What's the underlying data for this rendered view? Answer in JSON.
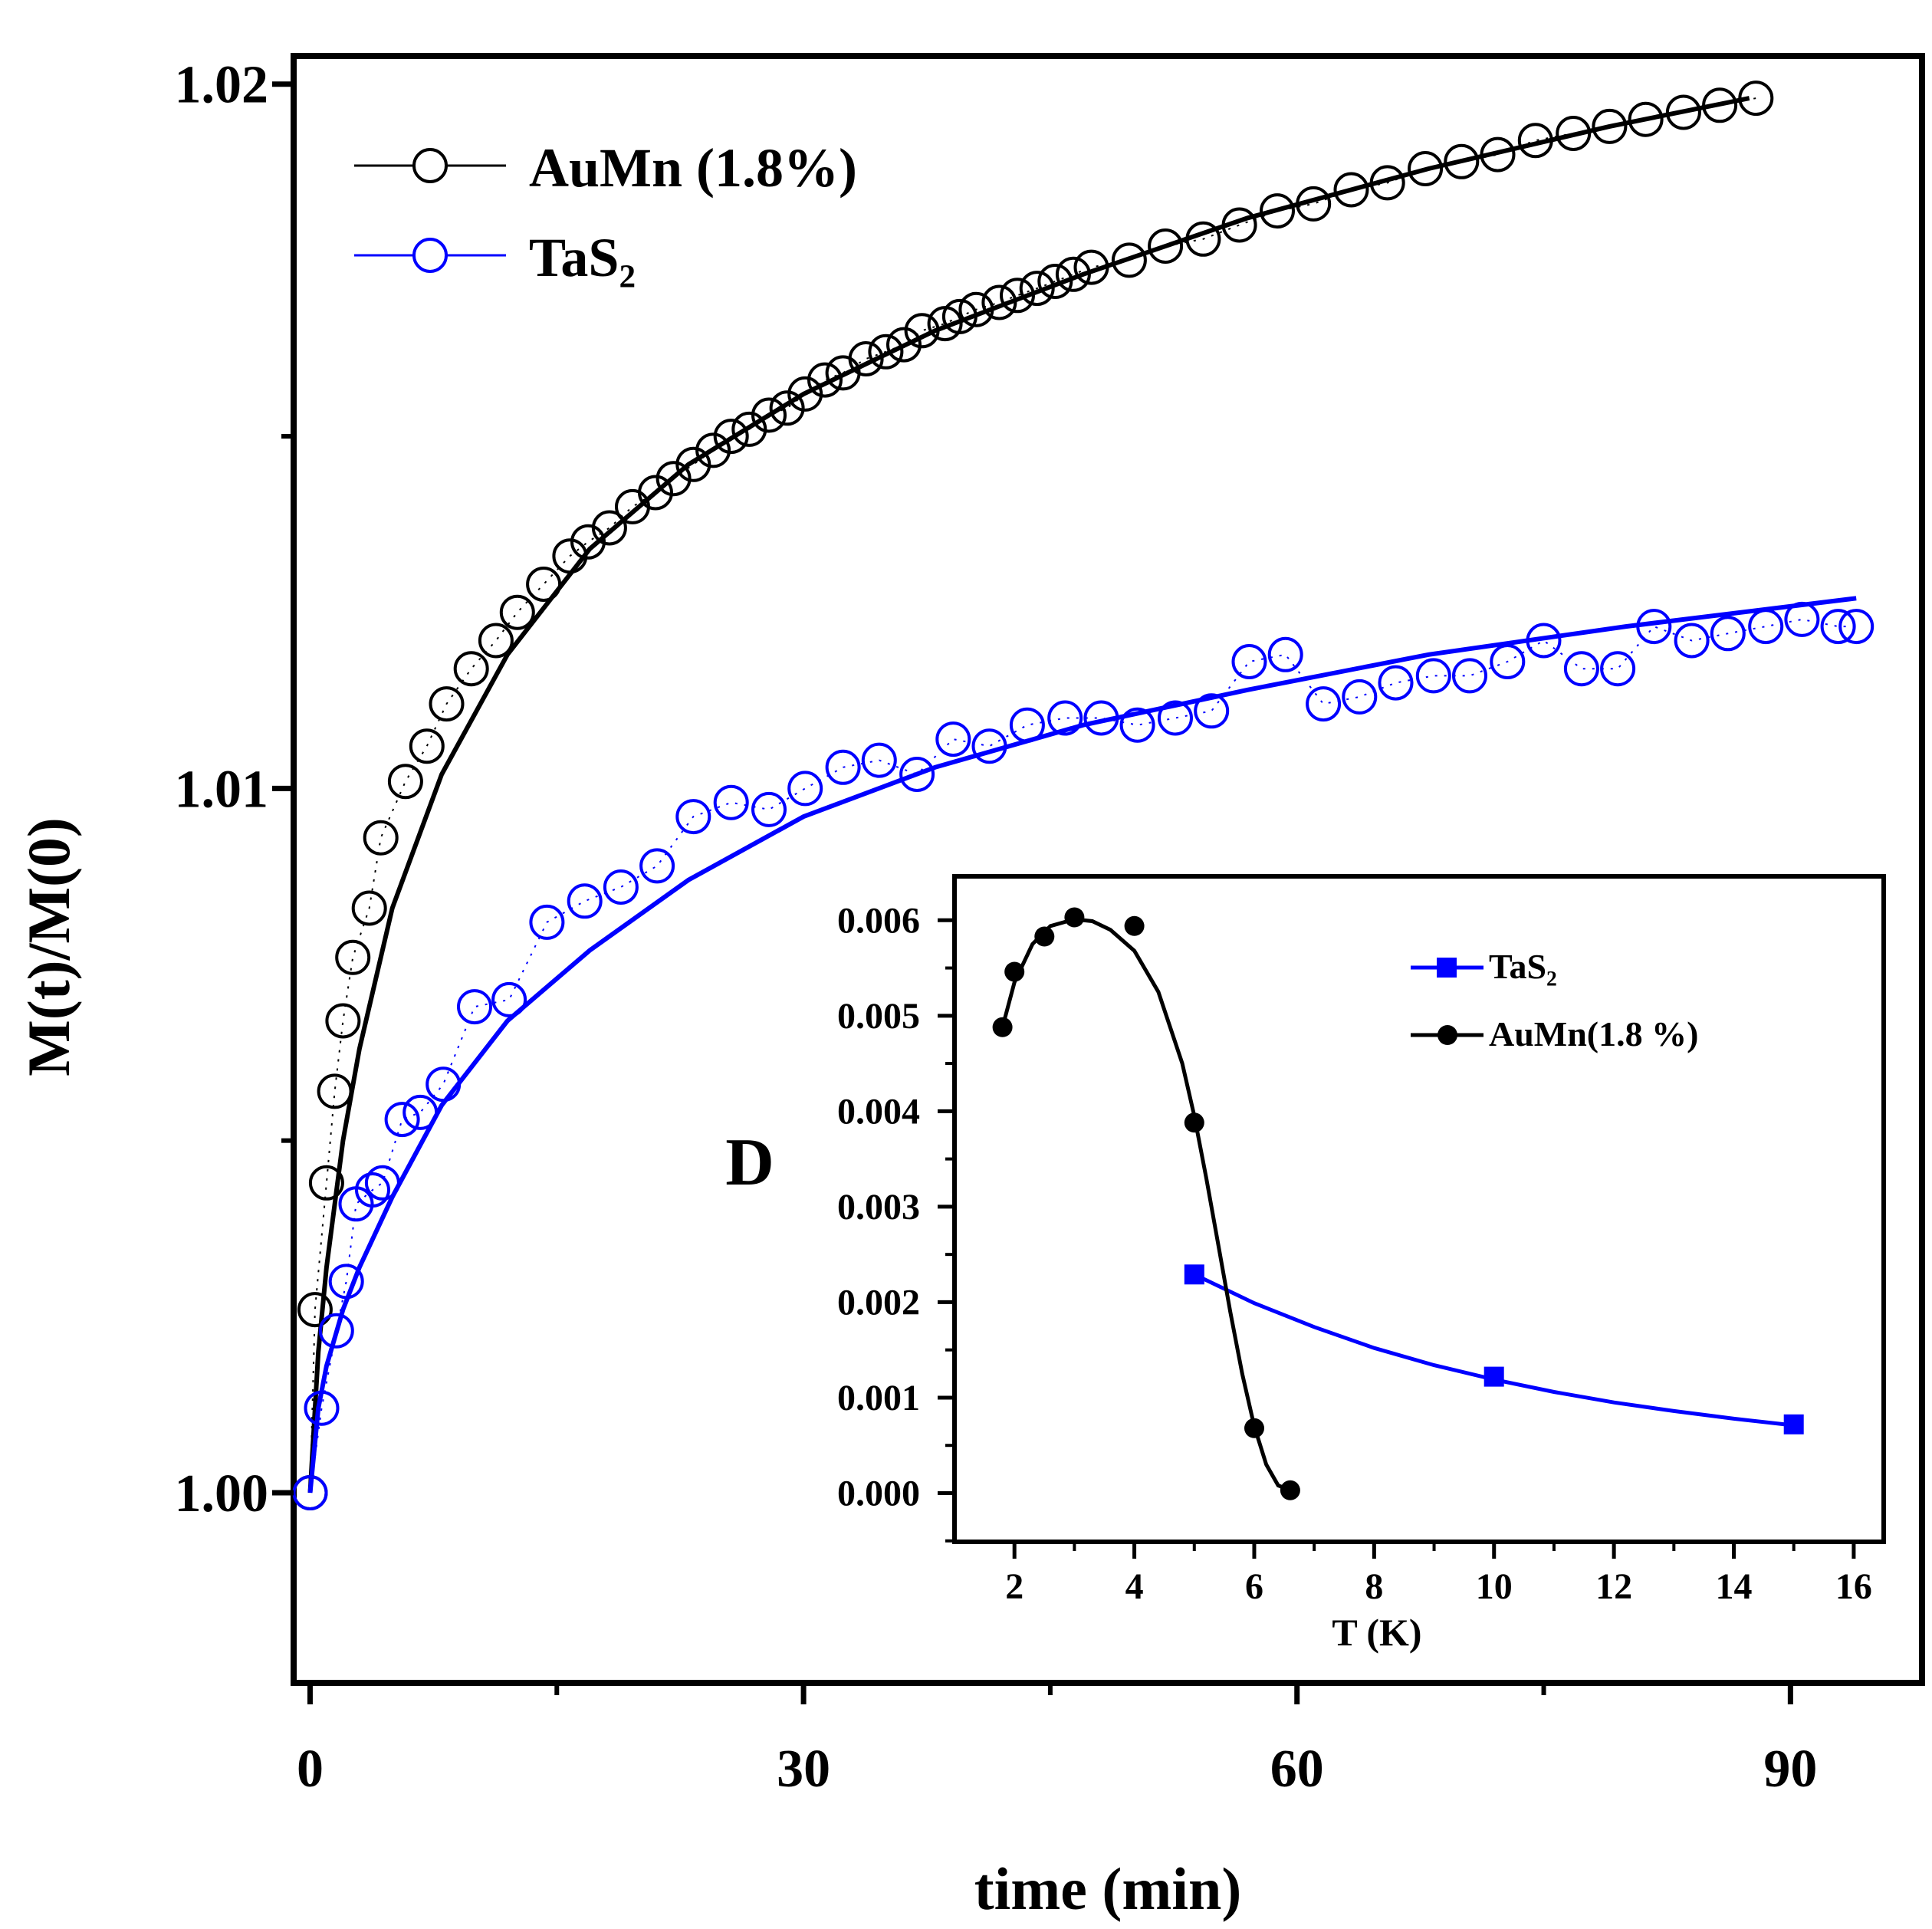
{
  "chart_data": [
    {
      "type": "scatter",
      "title": "",
      "xlabel": "time (min)",
      "ylabel": "M(t)/M(0)",
      "xlim": [
        -1,
        98
      ],
      "ylim": [
        0.9973,
        1.0204
      ],
      "xticks": [
        0,
        30,
        60,
        90
      ],
      "xtick_labels": [
        "0",
        "30",
        "60",
        "90"
      ],
      "yticks": [
        1.0,
        1.01,
        1.02
      ],
      "ytick_labels": [
        "1.00",
        "1.01",
        "1.02"
      ],
      "grid": false,
      "legend_position": "top-left",
      "series": [
        {
          "name": "AuMn (1.8%)",
          "color": "#000000",
          "marker": "open-circle",
          "x": [
            0,
            0.3,
            1.0,
            1.5,
            2.0,
            2.6,
            3.6,
            4.3,
            5.8,
            7.1,
            8.3,
            9.8,
            11.3,
            12.6,
            14.2,
            15.8,
            16.9,
            18.2,
            19.6,
            21.0,
            22.1,
            23.3,
            24.5,
            25.6,
            26.7,
            27.9,
            29.0,
            30.1,
            31.3,
            32.4,
            33.8,
            35.0,
            36.1,
            37.2,
            38.6,
            39.5,
            40.5,
            41.9,
            43.0,
            44.2,
            45.3,
            46.4,
            47.5,
            49.8,
            52.0,
            54.3,
            56.5,
            58.8,
            61.0,
            63.3,
            65.5,
            67.8,
            70.0,
            72.2,
            74.5,
            76.8,
            79.0,
            81.2,
            83.5,
            85.7,
            87.9
          ],
          "values": [
            1.0,
            1.0026,
            1.0044,
            1.0057,
            1.0067,
            1.0076,
            1.0083,
            1.0093,
            1.0101,
            1.0106,
            1.0112,
            1.0117,
            1.0121,
            1.0125,
            1.0129,
            1.0133,
            1.0135,
            1.0137,
            1.014,
            1.0142,
            1.0144,
            1.0146,
            1.0148,
            1.015,
            1.0151,
            1.0153,
            1.0154,
            1.0156,
            1.0158,
            1.0159,
            1.0161,
            1.0162,
            1.0163,
            1.0165,
            1.0166,
            1.0167,
            1.0168,
            1.0169,
            1.017,
            1.0171,
            1.0172,
            1.0173,
            1.0174,
            1.0175,
            1.0177,
            1.0178,
            1.018,
            1.0182,
            1.0183,
            1.0185,
            1.0186,
            1.0188,
            1.0189,
            1.019,
            1.0192,
            1.0193,
            1.0194,
            1.0195,
            1.0196,
            1.0197,
            1.0198
          ],
          "fit_x": [
            0,
            0.5,
            1,
            2,
            3,
            5,
            8,
            12,
            17,
            23,
            30,
            38,
            47,
            57,
            68,
            79,
            87.5
          ],
          "fit_values": [
            1.0,
            1.002,
            1.0032,
            1.005,
            1.0063,
            1.0083,
            1.0102,
            1.0119,
            1.0134,
            1.0146,
            1.0156,
            1.0165,
            1.0173,
            1.0181,
            1.0188,
            1.0194,
            1.0198
          ]
        },
        {
          "name": "TaS₂",
          "color": "#0000ff",
          "marker": "open-circle",
          "x": [
            0,
            0.7,
            1.6,
            2.2,
            2.8,
            3.8,
            4.4,
            5.6,
            6.7,
            8.1,
            10.0,
            12.1,
            14.4,
            16.7,
            18.9,
            21.1,
            23.3,
            25.6,
            27.9,
            30.1,
            32.4,
            34.6,
            36.9,
            39.1,
            41.3,
            43.6,
            45.9,
            48.1,
            50.3,
            52.6,
            54.8,
            57.1,
            59.3,
            61.6,
            63.8,
            66.0,
            68.3,
            70.5,
            72.8,
            75.0,
            77.3,
            79.5,
            81.7,
            84.0,
            86.2,
            88.5,
            90.7,
            92.9,
            94.0
          ],
          "values": [
            1.0,
            1.0012,
            1.0023,
            1.003,
            1.0041,
            1.0043,
            1.0044,
            1.0053,
            1.0054,
            1.0058,
            1.0069,
            1.007,
            1.0081,
            1.0084,
            1.0086,
            1.0089,
            1.0096,
            1.0098,
            1.0097,
            1.01,
            1.0103,
            1.0104,
            1.0102,
            1.0107,
            1.0106,
            1.0109,
            1.011,
            1.011,
            1.0109,
            1.011,
            1.0111,
            1.0118,
            1.0119,
            1.0112,
            1.0113,
            1.0115,
            1.0116,
            1.0116,
            1.0118,
            1.0121,
            1.0117,
            1.0117,
            1.0123,
            1.0121,
            1.0122,
            1.0123,
            1.0124,
            1.0123,
            1.0123
          ],
          "fit_x": [
            0,
            0.5,
            1,
            2,
            3,
            5,
            8,
            12,
            17,
            23,
            30,
            38,
            47,
            57,
            68,
            80,
            94
          ],
          "fit_values": [
            1.0,
            1.0012,
            1.0018,
            1.0026,
            1.0032,
            1.0042,
            1.0055,
            1.0067,
            1.0077,
            1.0087,
            1.0096,
            1.0103,
            1.0109,
            1.0114,
            1.0119,
            1.0123,
            1.0127
          ]
        }
      ]
    },
    {
      "type": "line",
      "title": "",
      "xlabel": "T (K)",
      "ylabel": "D",
      "xlim": [
        1,
        16.5
      ],
      "ylim": [
        -0.00051,
        0.00646
      ],
      "xticks": [
        2,
        4,
        6,
        8,
        10,
        12,
        14,
        16
      ],
      "xtick_labels": [
        "2",
        "4",
        "6",
        "8",
        "10",
        "12",
        "14",
        "16"
      ],
      "yticks": [
        0.0,
        0.001,
        0.002,
        0.003,
        0.004,
        0.005,
        0.006
      ],
      "ytick_labels": [
        "0.000",
        "0.001",
        "0.002",
        "0.003",
        "0.004",
        "0.005",
        "0.006"
      ],
      "grid": false,
      "legend_position": "top-right",
      "series": [
        {
          "name": "TaS₂",
          "color": "#0000ff",
          "marker": "filled-square",
          "x": [
            5,
            10,
            15
          ],
          "values": [
            0.00229,
            0.00122,
            0.00072
          ],
          "fit_x": [
            5,
            6,
            7,
            8,
            9,
            10,
            11,
            12,
            13,
            14,
            15
          ],
          "fit_values": [
            0.00229,
            0.00199,
            0.00174,
            0.00152,
            0.00134,
            0.00119,
            0.00106,
            0.00095,
            0.00086,
            0.00078,
            0.00071
          ]
        },
        {
          "name": "AuMn(1.8 %)",
          "color": "#000000",
          "marker": "filled-circle",
          "x": [
            1.8,
            2.0,
            2.5,
            3.0,
            4.0,
            5.0,
            6.0,
            6.6
          ],
          "values": [
            0.00488,
            0.00546,
            0.00583,
            0.00603,
            0.00594,
            0.00388,
            0.00068,
            3e-05
          ],
          "fit_x": [
            1.8,
            2.0,
            2.3,
            2.6,
            3.0,
            3.3,
            3.6,
            4.0,
            4.4,
            4.8,
            5.0,
            5.2,
            5.4,
            5.6,
            5.8,
            6.0,
            6.2,
            6.4,
            6.6
          ],
          "fit_values": [
            0.00488,
            0.00535,
            0.00575,
            0.00594,
            0.00601,
            0.00599,
            0.0059,
            0.00568,
            0.00525,
            0.0045,
            0.00395,
            0.0033,
            0.0026,
            0.0019,
            0.00125,
            0.0007,
            0.0003,
            8e-05,
            3e-05
          ]
        }
      ]
    }
  ]
}
